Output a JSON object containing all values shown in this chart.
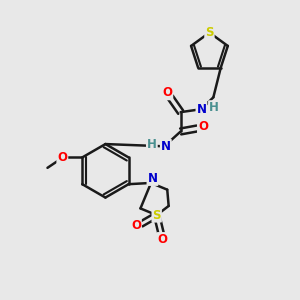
{
  "bg_color": "#e8e8e8",
  "bond_color": "#1a1a1a",
  "bond_width": 1.8,
  "atom_colors": {
    "O": "#ff0000",
    "N": "#0000cc",
    "S": "#cccc00",
    "H": "#4a9090",
    "C": "#1a1a1a"
  },
  "font_size": 8.5,
  "fig_size": [
    3.0,
    3.0
  ],
  "dpi": 100
}
